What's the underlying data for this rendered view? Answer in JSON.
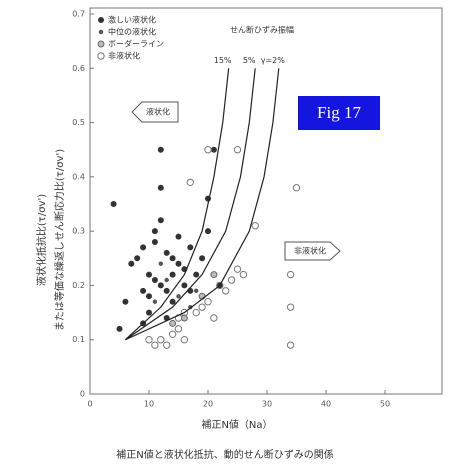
{
  "chart_data": {
    "type": "scatter",
    "title": "補正N値と液状化抵抗、動的せん断ひずみの関係",
    "x_label": "補正N値（Na）",
    "y_label": [
      "液状化抵抗比(τ/σv')",
      "または等価な繰返しせん断応力比(τ/σv')"
    ],
    "badge": "Fig 17",
    "annotations": [
      "液状化",
      "非液状化",
      "せん断ひずみ振幅"
    ],
    "xlim": [
      0,
      60
    ],
    "xticks": [
      0,
      10,
      20,
      30,
      40,
      50
    ],
    "ylim": [
      0,
      0.7
    ],
    "yticks": [
      0,
      0.1,
      0.2,
      0.3,
      0.4,
      0.5,
      0.6,
      0.7
    ],
    "series": [
      {
        "name": "激しい液状化",
        "marker": "filled",
        "color": "#333333",
        "x": [
          4,
          5,
          6,
          7,
          8,
          9,
          9,
          10,
          10,
          11,
          11,
          11,
          12,
          12,
          12,
          13,
          13,
          14,
          14,
          15,
          15,
          16,
          16,
          17,
          17,
          18,
          19,
          20,
          20,
          21,
          22,
          12,
          13,
          10,
          9,
          14
        ],
        "values": [
          0.35,
          0.12,
          0.17,
          0.24,
          0.25,
          0.19,
          0.13,
          0.22,
          0.15,
          0.28,
          0.21,
          0.3,
          0.32,
          0.45,
          0.38,
          0.26,
          0.19,
          0.22,
          0.17,
          0.29,
          0.24,
          0.23,
          0.2,
          0.27,
          0.19,
          0.22,
          0.25,
          0.36,
          0.3,
          0.45,
          0.2,
          0.2,
          0.14,
          0.18,
          0.27,
          0.25
        ]
      },
      {
        "name": "中位の液状化",
        "marker": "small",
        "color": "#555555",
        "x": [
          11,
          13,
          15,
          17,
          18,
          12
        ],
        "values": [
          0.17,
          0.21,
          0.18,
          0.16,
          0.19,
          0.24
        ]
      },
      {
        "name": "ボーダーライン",
        "marker": "half",
        "color": "#666666",
        "x": [
          14,
          16,
          19,
          21
        ],
        "values": [
          0.13,
          0.14,
          0.18,
          0.22
        ]
      },
      {
        "name": "非液状化",
        "marker": "open",
        "color": "#777777",
        "x": [
          10,
          11,
          12,
          13,
          14,
          15,
          16,
          18,
          19,
          20,
          21,
          22,
          23,
          24,
          25,
          26,
          28,
          17,
          20,
          25,
          34,
          34,
          34,
          35,
          15,
          16
        ],
        "values": [
          0.1,
          0.09,
          0.1,
          0.09,
          0.11,
          0.12,
          0.1,
          0.15,
          0.16,
          0.17,
          0.14,
          0.2,
          0.19,
          0.21,
          0.23,
          0.22,
          0.31,
          0.39,
          0.45,
          0.45,
          0.22,
          0.16,
          0.09,
          0.38,
          0.14,
          0.15
        ]
      }
    ],
    "curves": [
      {
        "name": "15%",
        "x": [
          6,
          12,
          16,
          19,
          21,
          22.5,
          23.5
        ],
        "values": [
          0.1,
          0.16,
          0.22,
          0.3,
          0.4,
          0.5,
          0.6
        ]
      },
      {
        "name": "5%",
        "x": [
          6,
          14,
          19,
          23,
          25.5,
          27,
          28
        ],
        "values": [
          0.1,
          0.16,
          0.22,
          0.3,
          0.4,
          0.5,
          0.6
        ]
      },
      {
        "name": "γ=2%",
        "x": [
          6,
          16,
          22,
          27,
          29.5,
          31,
          32
        ],
        "values": [
          0.1,
          0.15,
          0.2,
          0.3,
          0.4,
          0.5,
          0.6
        ]
      }
    ]
  }
}
